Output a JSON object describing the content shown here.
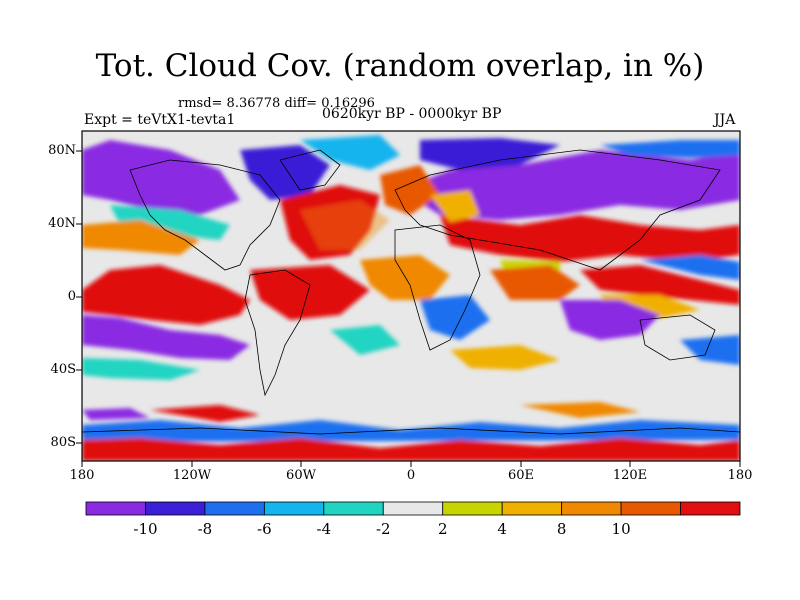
{
  "title": "Tot. Cloud Cov. (random overlap, in %)",
  "stats_line": "rmsd= 8.36778 diff= 0.16296",
  "experiment": "Expt = teVtX1-tevta1",
  "period": "0620kyr BP - 0000kyr BP",
  "season": "JJA",
  "map": {
    "lat_ticks": [
      "80N",
      "40N",
      "0",
      "40S",
      "80S"
    ],
    "lon_ticks": [
      "180",
      "120W",
      "60W",
      "0",
      "60E",
      "120E",
      "180"
    ]
  },
  "colorbar": {
    "labels": [
      "-10",
      "-8",
      "-6",
      "-4",
      "-2",
      "2",
      "4",
      "8",
      "10"
    ],
    "colors": [
      "#8a2be2",
      "#3a1fd6",
      "#1e6ff0",
      "#14b4ee",
      "#21d4c2",
      "#e8e8e8",
      "#c8d400",
      "#f0b000",
      "#f08800",
      "#e85800",
      "#e01010"
    ]
  }
}
